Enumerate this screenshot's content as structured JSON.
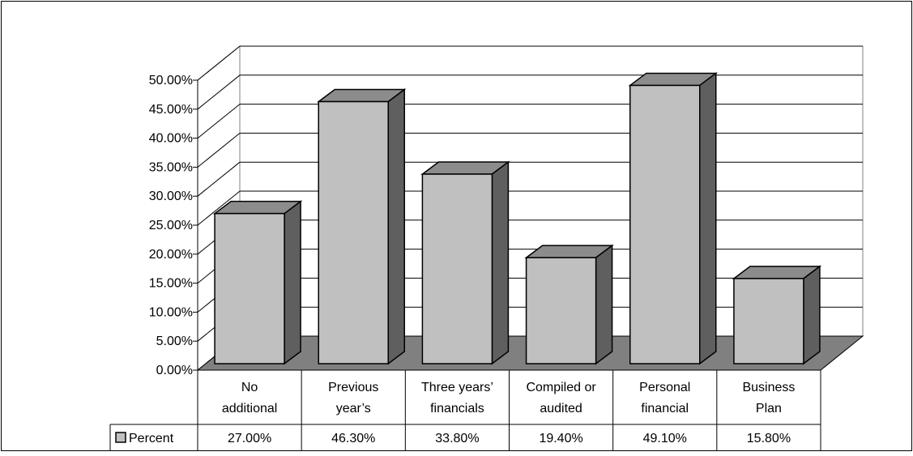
{
  "chart_data": {
    "type": "bar",
    "title": "",
    "xlabel": "",
    "ylabel": "",
    "ylim": [
      0,
      0.5
    ],
    "y_tick_values": [
      0,
      0.05,
      0.1,
      0.15,
      0.2,
      0.25,
      0.3,
      0.35,
      0.4,
      0.45,
      0.5
    ],
    "y_tick_labels": [
      "0.00%",
      "5.00%",
      "10.00%",
      "15.00%",
      "20.00%",
      "25.00%",
      "30.00%",
      "35.00%",
      "40.00%",
      "45.00%",
      "50.00%"
    ],
    "grid": true,
    "categories": [
      [
        "No",
        "additional"
      ],
      [
        "Previous",
        "year’s"
      ],
      [
        "Three years’",
        "financials"
      ],
      [
        "Compiled or",
        "audited"
      ],
      [
        "Personal",
        "financial"
      ],
      [
        "Business",
        "Plan"
      ]
    ],
    "series": [
      {
        "name": "Percent",
        "values": [
          0.27,
          0.463,
          0.338,
          0.194,
          0.491,
          0.158
        ],
        "value_labels": [
          "27.00%",
          "46.30%",
          "33.80%",
          "19.40%",
          "49.10%",
          "15.80%"
        ]
      }
    ],
    "legend": "data-table-left",
    "colors": {
      "bar_front": "#c0c0c0",
      "bar_side": "#5f5f5f",
      "bar_top": "#8c8c8c",
      "floor": "#808080",
      "grid": "#000000",
      "outline": "#000000"
    }
  }
}
